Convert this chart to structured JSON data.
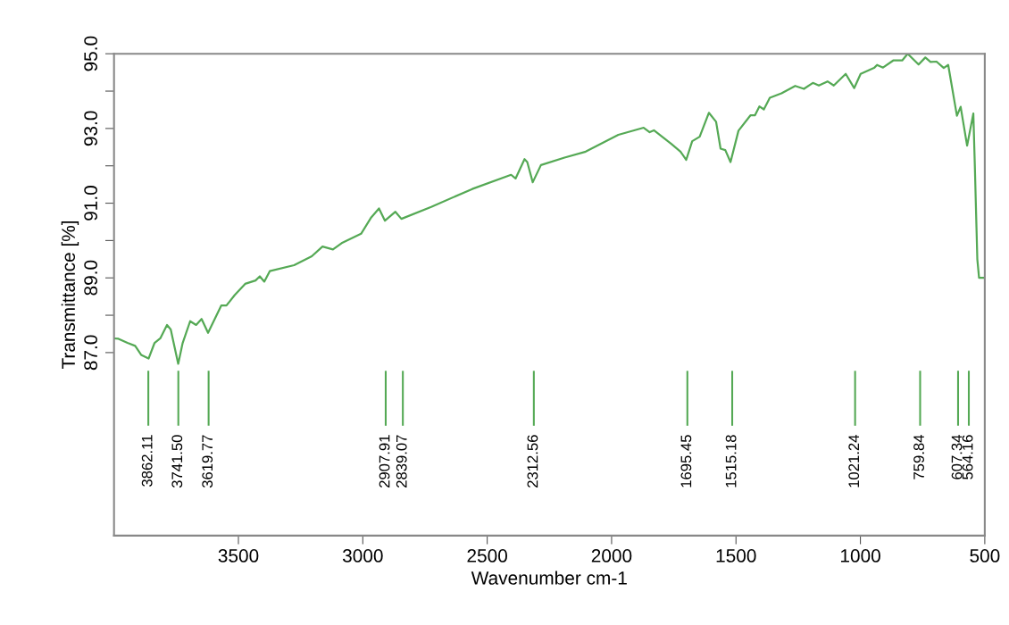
{
  "chart_data": {
    "type": "line",
    "xlabel": "Wavenumber cm-1",
    "ylabel": "Transmittance [%]",
    "xlim": [
      4000,
      500
    ],
    "xticks": [
      3500,
      3000,
      2500,
      2000,
      1500,
      1000,
      500
    ],
    "ylim": [
      82.1,
      95.0
    ],
    "yticks": [
      {
        "value": 87,
        "label": "87.0"
      },
      {
        "value": 88,
        "label": null
      },
      {
        "value": 89,
        "label": "89.0"
      },
      {
        "value": 90,
        "label": null
      },
      {
        "value": 91,
        "label": "91.0"
      },
      {
        "value": 92,
        "label": null
      },
      {
        "value": 93,
        "label": "93.0"
      },
      {
        "value": 94,
        "label": null
      },
      {
        "value": 95,
        "label": "95.0"
      }
    ],
    "grid": false,
    "marker": "none",
    "line_style": "solid",
    "series": [
      {
        "color": "#55a955",
        "x": [
          4000,
          3982,
          3946,
          3915,
          3891,
          3861,
          3837,
          3814,
          3787,
          3772,
          3742,
          3724,
          3694,
          3670,
          3648,
          3622,
          3569,
          3548,
          3515,
          3473,
          3431,
          3414,
          3396,
          3374,
          3276,
          3205,
          3162,
          3120,
          3085,
          3007,
          2966,
          2935,
          2911,
          2869,
          2845,
          2725,
          2560,
          2404,
          2386,
          2350,
          2339,
          2317,
          2284,
          2189,
          2104,
          1973,
          1871,
          1847,
          1830,
          1759,
          1723,
          1700,
          1676,
          1646,
          1609,
          1580,
          1562,
          1543,
          1522,
          1490,
          1442,
          1424,
          1406,
          1388,
          1364,
          1317,
          1262,
          1227,
          1191,
          1167,
          1132,
          1107,
          1059,
          1025,
          999,
          945,
          933,
          909,
          868,
          832,
          810,
          766,
          739,
          718,
          694,
          665,
          647,
          612,
          597,
          571,
          546,
          540,
          530,
          523,
          500
        ],
        "values": [
          87.38,
          87.37,
          87.26,
          87.18,
          86.94,
          86.84,
          87.26,
          87.38,
          87.74,
          87.62,
          86.7,
          87.26,
          87.84,
          87.74,
          87.9,
          87.53,
          88.26,
          88.26,
          88.54,
          88.84,
          88.93,
          89.04,
          88.9,
          89.18,
          89.34,
          89.58,
          89.84,
          89.76,
          89.93,
          90.18,
          90.62,
          90.86,
          90.53,
          90.77,
          90.58,
          90.9,
          91.38,
          91.76,
          91.66,
          92.18,
          92.1,
          91.56,
          92.02,
          92.22,
          92.38,
          92.83,
          93.02,
          92.9,
          92.95,
          92.58,
          92.38,
          92.16,
          92.66,
          92.78,
          93.42,
          93.18,
          92.46,
          92.42,
          92.1,
          92.94,
          93.35,
          93.35,
          93.59,
          93.51,
          93.82,
          93.94,
          94.14,
          94.06,
          94.22,
          94.15,
          94.26,
          94.15,
          94.46,
          94.08,
          94.46,
          94.62,
          94.7,
          94.63,
          94.82,
          94.82,
          95.0,
          94.71,
          94.9,
          94.78,
          94.79,
          94.62,
          94.7,
          93.34,
          93.58,
          92.54,
          93.4,
          92.0,
          89.5,
          89.0,
          89.0
        ]
      }
    ],
    "ref_lines": [
      {
        "axis": "x",
        "value": 3862.11,
        "label": "3862.11",
        "color": "#55a955"
      },
      {
        "axis": "x",
        "value": 3741.5,
        "label": "3741.50",
        "color": "#55a955"
      },
      {
        "axis": "x",
        "value": 3619.77,
        "label": "3619.77",
        "color": "#55a955"
      },
      {
        "axis": "x",
        "value": 2907.91,
        "label": "2907.91",
        "color": "#55a955"
      },
      {
        "axis": "x",
        "value": 2839.07,
        "label": "2839.07",
        "color": "#55a955"
      },
      {
        "axis": "x",
        "value": 2312.56,
        "label": "2312.56",
        "color": "#55a955"
      },
      {
        "axis": "x",
        "value": 1695.45,
        "label": "1695.45",
        "color": "#55a955"
      },
      {
        "axis": "x",
        "value": 1515.18,
        "label": "1515.18",
        "color": "#55a955"
      },
      {
        "axis": "x",
        "value": 1021.24,
        "label": "1021.24",
        "color": "#55a955"
      },
      {
        "axis": "x",
        "value": 759.84,
        "label": "759.84",
        "color": "#55a955"
      },
      {
        "axis": "x",
        "value": 607.34,
        "label": "607.34",
        "color": "#55a955"
      },
      {
        "axis": "x",
        "value": 564.16,
        "label": "564.16",
        "color": "#55a955"
      }
    ]
  }
}
